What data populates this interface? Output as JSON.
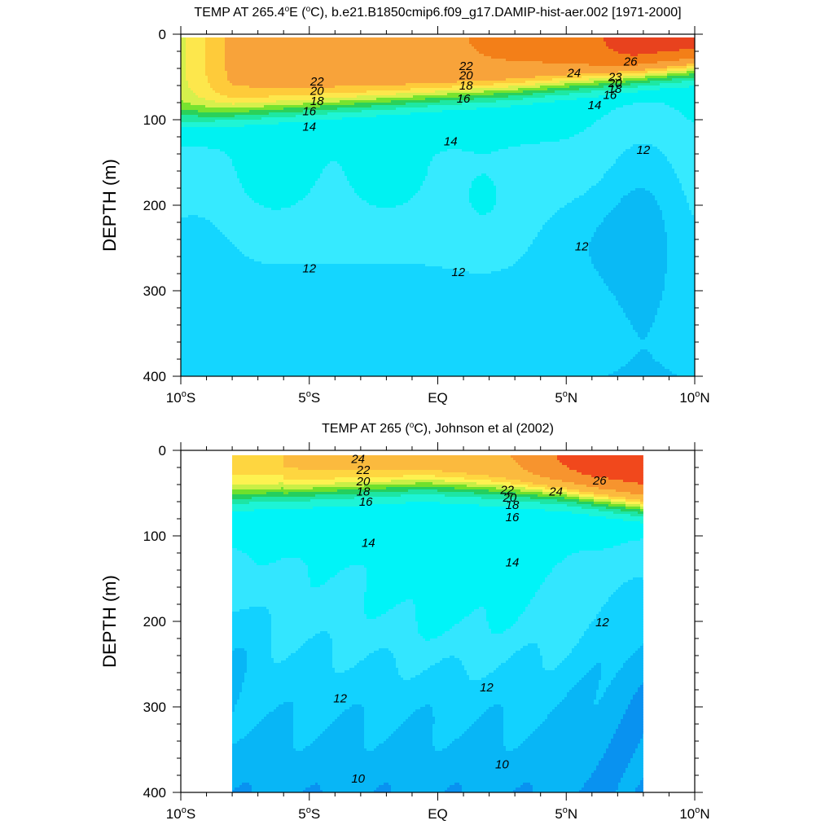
{
  "chart_data": [
    {
      "type": "heatmap",
      "title_parts": [
        "TEMP AT 265.4",
        "o",
        "E (",
        "o",
        "C), b.e21.B1850cmip6.f09_g17.DAMIP-hist-aer.002 [1971-2000]"
      ],
      "ylabel": "DEPTH (m)",
      "xlabel": "",
      "x_ticks": [
        {
          "v": -10,
          "a": "10",
          "b": "S"
        },
        {
          "v": -5,
          "a": "5",
          "b": "S"
        },
        {
          "v": 0,
          "a": "EQ",
          "b": ""
        },
        {
          "v": 5,
          "a": "5",
          "b": "N"
        },
        {
          "v": 10,
          "a": "10",
          "b": "N"
        }
      ],
      "y_ticks": [
        0,
        100,
        200,
        300,
        400
      ],
      "xlim": [
        -10,
        10
      ],
      "ylim": [
        0,
        400
      ],
      "data_xlim": [
        -10,
        10
      ],
      "y_reversed": true,
      "grid": false,
      "color_levels": [
        {
          "min": 26,
          "color": "#e8421e"
        },
        {
          "min": 24,
          "color": "#f37f18"
        },
        {
          "min": 22,
          "color": "#f8a33a"
        },
        {
          "min": 21,
          "color": "#fecb3a"
        },
        {
          "min": 20,
          "color": "#fde74c"
        },
        {
          "min": 19,
          "color": "#d6f04c"
        },
        {
          "min": 18,
          "color": "#77e32f"
        },
        {
          "min": 17,
          "color": "#2bd15a"
        },
        {
          "min": 16,
          "color": "#1ee8a2"
        },
        {
          "min": 15,
          "color": "#1ff5d5"
        },
        {
          "min": 14,
          "color": "#00f2f2"
        },
        {
          "min": 13,
          "color": "#36eaff"
        },
        {
          "min": 12,
          "color": "#14d6ff"
        },
        {
          "min": 11,
          "color": "#0abaf5"
        },
        {
          "min": 10,
          "color": "#0893f0"
        },
        {
          "min": 0,
          "color": "#0e58e6"
        }
      ],
      "contour_labels": [
        {
          "text": "22",
          "x": -4.7,
          "y": 55
        },
        {
          "text": "20",
          "x": -4.7,
          "y": 66
        },
        {
          "text": "18",
          "x": -4.7,
          "y": 78
        },
        {
          "text": "16",
          "x": -5.0,
          "y": 90
        },
        {
          "text": "14",
          "x": -5.0,
          "y": 108
        },
        {
          "text": "12",
          "x": -5.0,
          "y": 274
        },
        {
          "text": "14",
          "x": 0.5,
          "y": 125
        },
        {
          "text": "12",
          "x": 0.8,
          "y": 278
        },
        {
          "text": "22",
          "x": 1.1,
          "y": 37
        },
        {
          "text": "20",
          "x": 1.1,
          "y": 48
        },
        {
          "text": "18",
          "x": 1.1,
          "y": 60
        },
        {
          "text": "16",
          "x": 1.0,
          "y": 75
        },
        {
          "text": "24",
          "x": 5.3,
          "y": 45
        },
        {
          "text": "23",
          "x": 6.9,
          "y": 50
        },
        {
          "text": "20",
          "x": 6.9,
          "y": 57
        },
        {
          "text": "18",
          "x": 6.9,
          "y": 64
        },
        {
          "text": "16",
          "x": 6.7,
          "y": 71
        },
        {
          "text": "14",
          "x": 6.1,
          "y": 83
        },
        {
          "text": "26",
          "x": 7.5,
          "y": 32
        },
        {
          "text": "12",
          "x": 8.0,
          "y": 135
        },
        {
          "text": "12",
          "x": 5.6,
          "y": 248
        }
      ]
    },
    {
      "type": "heatmap",
      "title_parts": [
        "TEMP AT 265 (",
        "o",
        "C), Johnson et al (2002)"
      ],
      "ylabel": "DEPTH (m)",
      "xlabel": "",
      "x_ticks": [
        {
          "v": -10,
          "a": "10",
          "b": "S"
        },
        {
          "v": -5,
          "a": "5",
          "b": "S"
        },
        {
          "v": 0,
          "a": "EQ",
          "b": ""
        },
        {
          "v": 5,
          "a": "5",
          "b": "N"
        },
        {
          "v": 10,
          "a": "10",
          "b": "N"
        }
      ],
      "y_ticks": [
        0,
        100,
        200,
        300,
        400
      ],
      "xlim": [
        -10,
        10
      ],
      "ylim": [
        0,
        400
      ],
      "data_xlim": [
        -8,
        8
      ],
      "y_reversed": true,
      "grid": false,
      "color_levels": [
        {
          "min": 26,
          "color": "#f1481c"
        },
        {
          "min": 24,
          "color": "#f7942e"
        },
        {
          "min": 22,
          "color": "#fbba3e"
        },
        {
          "min": 21,
          "color": "#fed640"
        },
        {
          "min": 20,
          "color": "#fdf250"
        },
        {
          "min": 19,
          "color": "#c9ef46"
        },
        {
          "min": 18,
          "color": "#6fe02c"
        },
        {
          "min": 17,
          "color": "#24cf5e"
        },
        {
          "min": 16,
          "color": "#1de5a4"
        },
        {
          "min": 15,
          "color": "#1df4d6"
        },
        {
          "min": 14,
          "color": "#00f4f8"
        },
        {
          "min": 13,
          "color": "#33e6ff"
        },
        {
          "min": 12,
          "color": "#12d2ff"
        },
        {
          "min": 11,
          "color": "#08b6f6"
        },
        {
          "min": 10,
          "color": "#0992f0"
        },
        {
          "min": 0,
          "color": "#0d5ae8"
        }
      ],
      "contour_labels": [
        {
          "text": "24",
          "x": -3.1,
          "y": 10
        },
        {
          "text": "22",
          "x": -2.9,
          "y": 23
        },
        {
          "text": "20",
          "x": -2.9,
          "y": 36
        },
        {
          "text": "18",
          "x": -2.9,
          "y": 48
        },
        {
          "text": "16",
          "x": -2.8,
          "y": 60
        },
        {
          "text": "14",
          "x": -2.7,
          "y": 108
        },
        {
          "text": "12",
          "x": -3.8,
          "y": 290
        },
        {
          "text": "10",
          "x": -3.1,
          "y": 384
        },
        {
          "text": "22",
          "x": 2.7,
          "y": 46
        },
        {
          "text": "20",
          "x": 2.8,
          "y": 55
        },
        {
          "text": "18",
          "x": 2.9,
          "y": 64
        },
        {
          "text": "16",
          "x": 2.9,
          "y": 78
        },
        {
          "text": "24",
          "x": 4.6,
          "y": 48
        },
        {
          "text": "26",
          "x": 6.3,
          "y": 35
        },
        {
          "text": "14",
          "x": 2.9,
          "y": 131
        },
        {
          "text": "12",
          "x": 1.9,
          "y": 277
        },
        {
          "text": "10",
          "x": 2.5,
          "y": 367
        },
        {
          "text": "12",
          "x": 6.4,
          "y": 201
        }
      ]
    }
  ]
}
